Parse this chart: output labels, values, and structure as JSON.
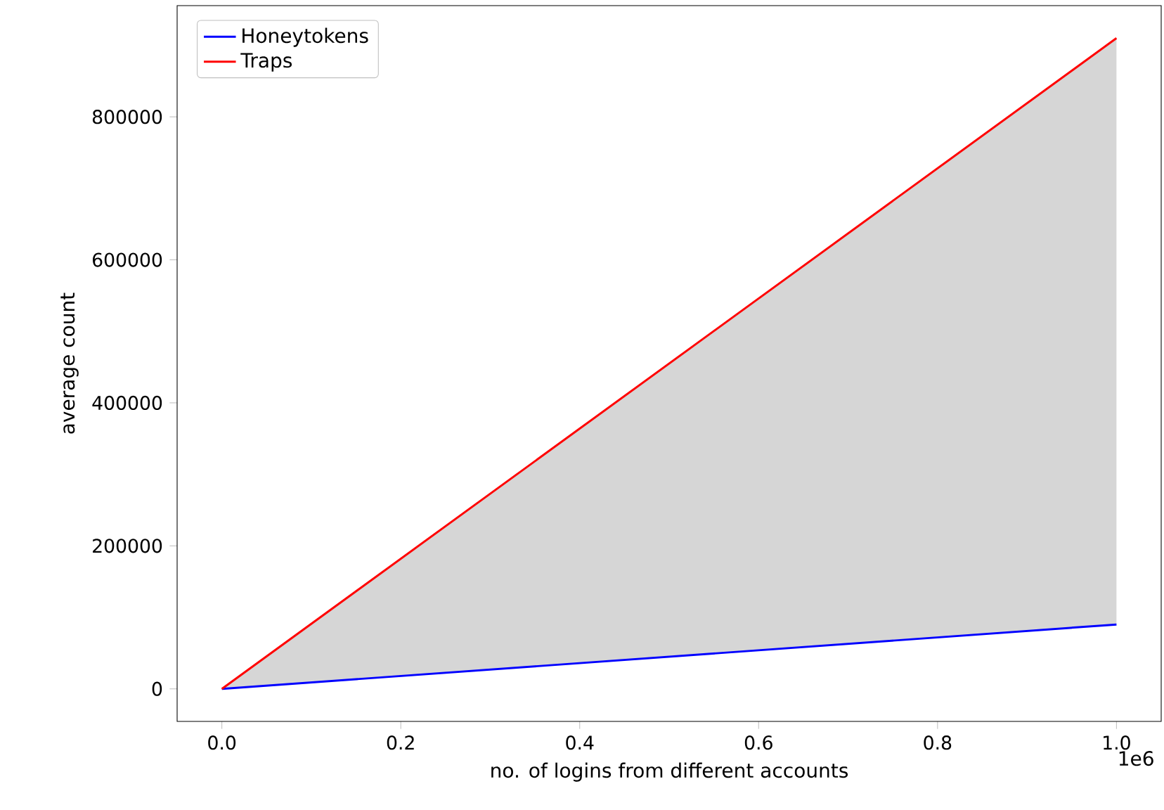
{
  "chart_data": {
    "type": "line",
    "xlabel": "no. of logins from different accounts",
    "ylabel": "average count",
    "x": [
      0,
      1
    ],
    "series": [
      {
        "name": "Honeytokens",
        "color": "#0000ff",
        "values": [
          0,
          90000
        ]
      },
      {
        "name": "Traps",
        "color": "#ff0000",
        "values": [
          0,
          910000
        ],
        "lower": [
          0,
          90000
        ],
        "upper": [
          0,
          910000
        ]
      }
    ],
    "xlim": [
      -0.05,
      1.05
    ],
    "xticks": [
      {
        "value": 0,
        "label": "0.0"
      },
      0.2,
      0.4,
      0.6,
      0.8,
      {
        "value": 1,
        "label": "1.0"
      }
    ],
    "ylim": [
      -45500,
      955500
    ],
    "yticks": [
      0,
      200000,
      400000,
      600000,
      800000
    ],
    "annotations": [
      "1e6"
    ],
    "legend": "top left",
    "grid": false,
    "marker": "none",
    "line_style": "solid"
  }
}
